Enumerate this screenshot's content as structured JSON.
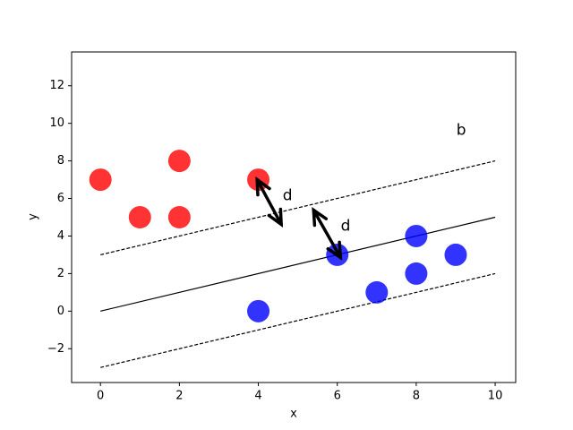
{
  "chart_data": {
    "type": "scatter",
    "xlabel": "x",
    "ylabel": "y",
    "xlim": [
      -0.73,
      10.52
    ],
    "ylim": [
      -3.8,
      13.8
    ],
    "xticks": [
      0,
      2,
      4,
      6,
      8,
      10
    ],
    "yticks": [
      {
        "value": -2,
        "label": "−2"
      },
      0,
      2,
      4,
      6,
      8,
      10,
      12
    ],
    "series": [
      {
        "color": "#ff0000",
        "x": [
          0,
          1,
          2,
          2,
          4
        ],
        "y": [
          7,
          5,
          8,
          5,
          7
        ]
      },
      {
        "color": "#0000ff",
        "x": [
          4,
          6,
          7,
          8,
          8,
          9
        ],
        "y": [
          0,
          3,
          1,
          4,
          2,
          3
        ]
      }
    ],
    "lines": [
      {
        "style": "solid",
        "x": [
          0,
          10
        ],
        "y": [
          0,
          5
        ]
      },
      {
        "style": "dashed",
        "x": [
          0,
          10
        ],
        "y": [
          3,
          8
        ]
      },
      {
        "style": "dashed",
        "x": [
          0,
          10
        ],
        "y": [
          -3,
          2
        ]
      }
    ],
    "arrows": [
      {
        "x": [
          3.97,
          4.58
        ],
        "y": [
          7.0,
          4.62
        ]
      },
      {
        "x": [
          5.4,
          6.08
        ],
        "y": [
          5.38,
          2.86
        ]
      }
    ],
    "annotations": [
      {
        "text": "b",
        "x": 9.14,
        "y": 9.62
      },
      {
        "text": "d",
        "x": 4.74,
        "y": 6.14
      },
      {
        "text": "d",
        "x": 6.21,
        "y": 4.52
      }
    ]
  }
}
